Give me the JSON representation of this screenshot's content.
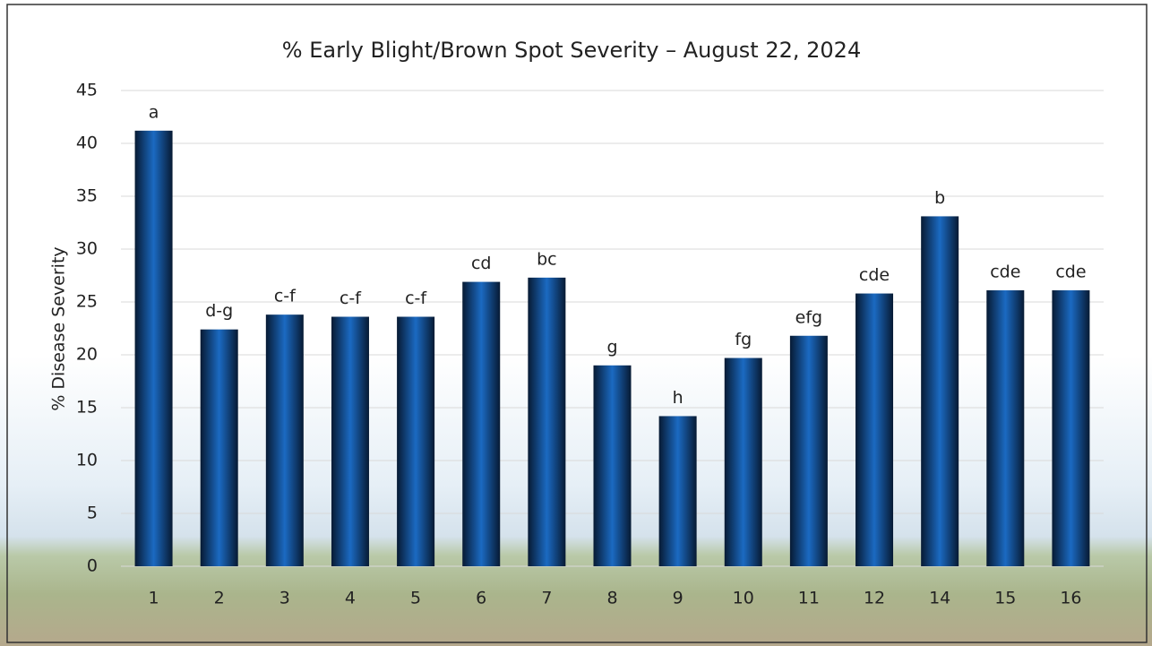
{
  "chart_data": {
    "type": "bar",
    "title": "% Early Blight/Brown Spot Severity – August 22, 2024",
    "y_label": "% Disease Severity",
    "categories": [
      "1",
      "2",
      "3",
      "4",
      "5",
      "6",
      "7",
      "8",
      "9",
      "10",
      "11",
      "12",
      "14",
      "15",
      "16"
    ],
    "values": [
      41.2,
      22.4,
      23.8,
      23.6,
      23.6,
      26.9,
      27.3,
      19.0,
      14.2,
      19.7,
      21.8,
      25.8,
      33.1,
      26.1,
      26.1
    ],
    "significance_letters": [
      "a",
      "d-g",
      "c-f",
      "c-f",
      "c-f",
      "cd",
      "bc",
      "g",
      "h",
      "fg",
      "efg",
      "cde",
      "b",
      "cde",
      "cde"
    ],
    "color": "#1b6ac2",
    "ylim": [
      0,
      45
    ],
    "yticks": [
      0,
      5,
      10,
      15,
      20,
      25,
      30,
      35,
      40,
      45
    ],
    "grid": true
  }
}
